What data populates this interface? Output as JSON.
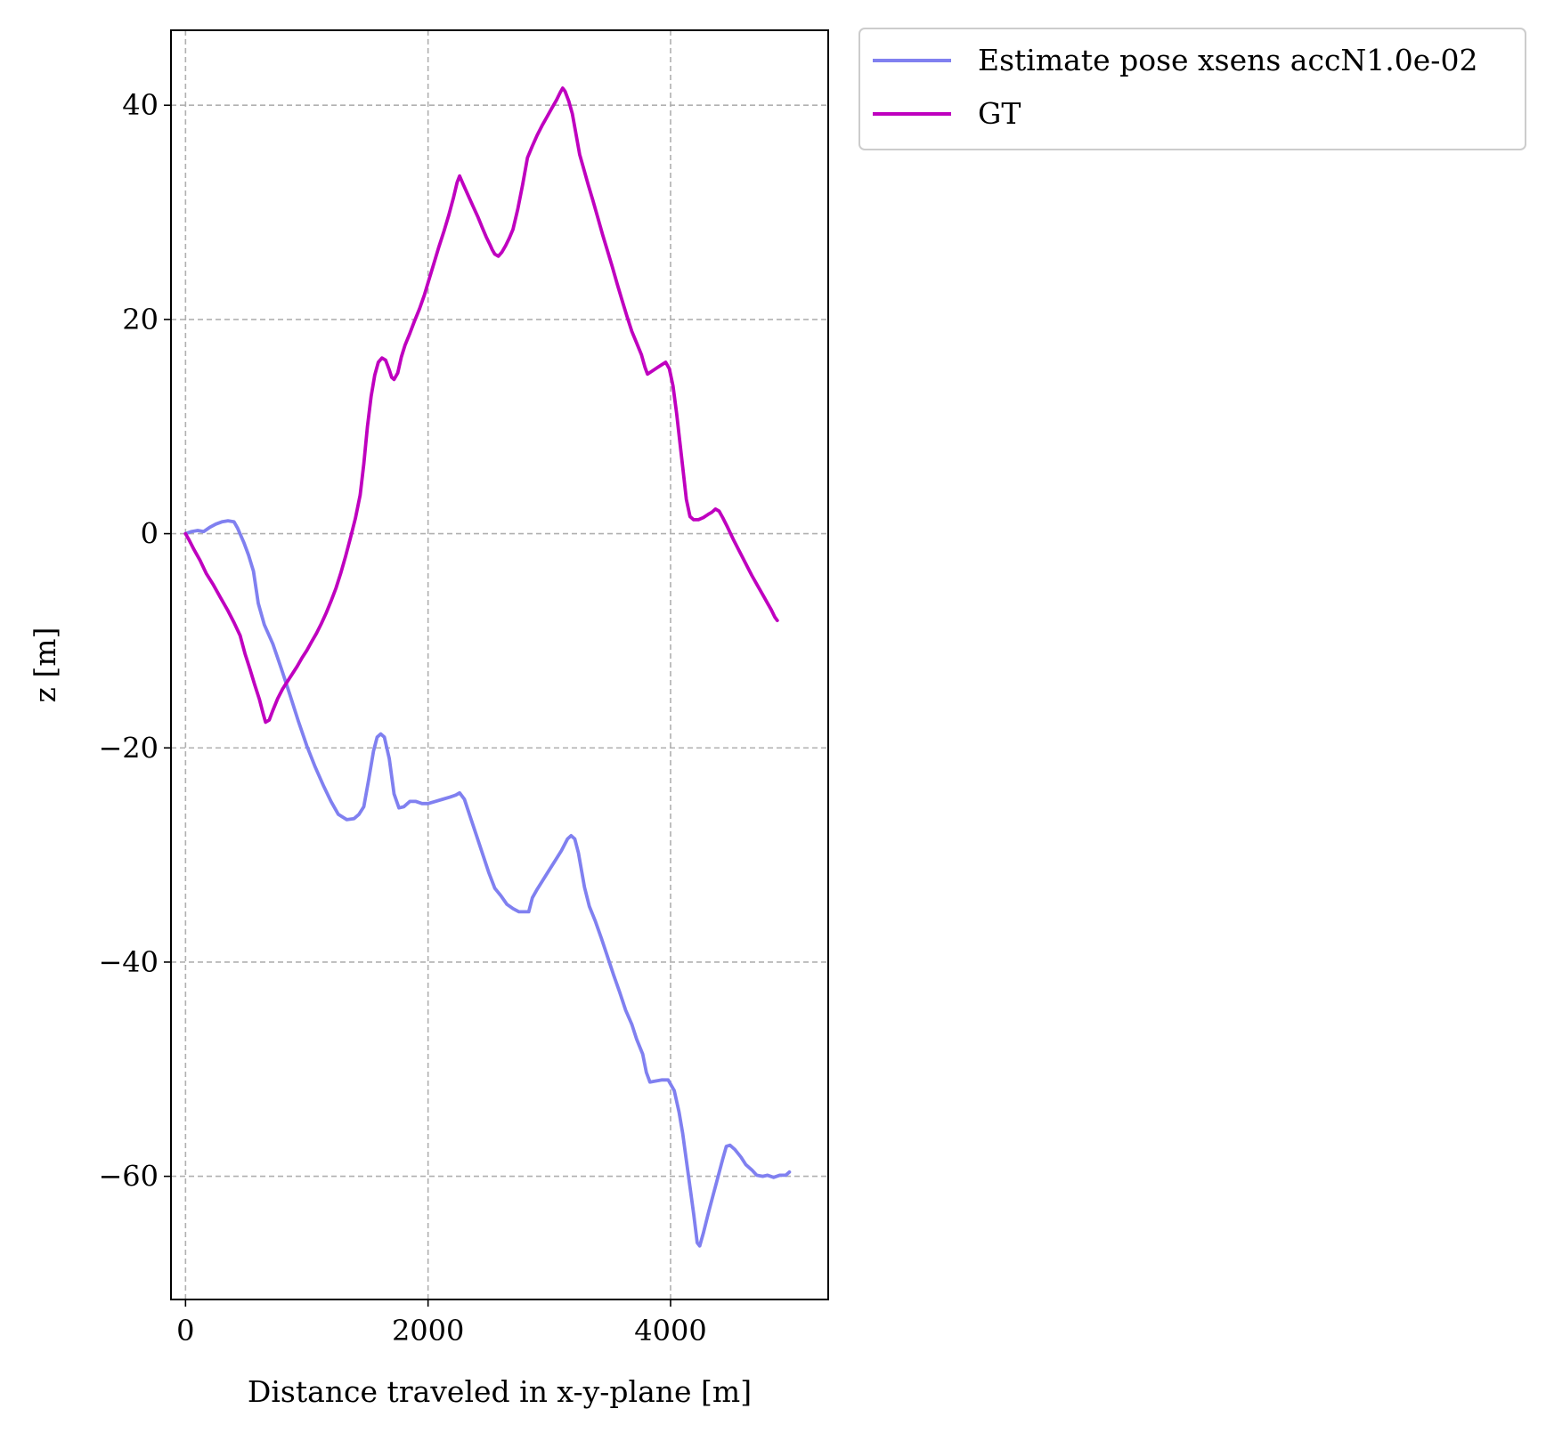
{
  "chart_data": {
    "type": "line",
    "xlabel": "Distance traveled in x-y-plane [m]",
    "ylabel": "z [m]",
    "xlim": [
      -120,
      5300
    ],
    "ylim": [
      -71.5,
      47
    ],
    "x_ticks": [
      0,
      2000,
      4000
    ],
    "x_tick_labels": [
      "0",
      "2000",
      "4000"
    ],
    "y_ticks": [
      40,
      20,
      0,
      -20,
      -40,
      -60
    ],
    "y_tick_labels": [
      "40",
      "20",
      "0",
      "−20",
      "−40",
      "−60"
    ],
    "grid": true,
    "legend_position": "outside-upper-right",
    "series": [
      {
        "name": "Estimate pose xsens accN1.0e-02",
        "color": "#8080f0",
        "points": [
          [
            0,
            0
          ],
          [
            50,
            0.2
          ],
          [
            100,
            0.3
          ],
          [
            150,
            0.2
          ],
          [
            200,
            0.6
          ],
          [
            250,
            0.9
          ],
          [
            300,
            1.1
          ],
          [
            350,
            1.2
          ],
          [
            400,
            1.1
          ],
          [
            430,
            0.5
          ],
          [
            480,
            -0.8
          ],
          [
            520,
            -2.0
          ],
          [
            560,
            -3.5
          ],
          [
            600,
            -6.5
          ],
          [
            650,
            -8.5
          ],
          [
            720,
            -10.3
          ],
          [
            790,
            -12.6
          ],
          [
            860,
            -15.0
          ],
          [
            930,
            -17.5
          ],
          [
            1000,
            -19.8
          ],
          [
            1070,
            -21.8
          ],
          [
            1140,
            -23.6
          ],
          [
            1200,
            -25.0
          ],
          [
            1260,
            -26.2
          ],
          [
            1330,
            -26.7
          ],
          [
            1390,
            -26.6
          ],
          [
            1430,
            -26.2
          ],
          [
            1470,
            -25.5
          ],
          [
            1510,
            -23.0
          ],
          [
            1550,
            -20.3
          ],
          [
            1580,
            -19.0
          ],
          [
            1610,
            -18.7
          ],
          [
            1640,
            -19.0
          ],
          [
            1680,
            -21.0
          ],
          [
            1720,
            -24.3
          ],
          [
            1760,
            -25.6
          ],
          [
            1800,
            -25.5
          ],
          [
            1850,
            -25.0
          ],
          [
            1900,
            -25.0
          ],
          [
            1950,
            -25.2
          ],
          [
            2000,
            -25.2
          ],
          [
            2060,
            -25.0
          ],
          [
            2120,
            -24.8
          ],
          [
            2180,
            -24.6
          ],
          [
            2230,
            -24.4
          ],
          [
            2260,
            -24.2
          ],
          [
            2300,
            -24.8
          ],
          [
            2350,
            -26.5
          ],
          [
            2400,
            -28.2
          ],
          [
            2450,
            -29.9
          ],
          [
            2500,
            -31.6
          ],
          [
            2550,
            -33.1
          ],
          [
            2600,
            -33.8
          ],
          [
            2650,
            -34.6
          ],
          [
            2700,
            -35.0
          ],
          [
            2750,
            -35.3
          ],
          [
            2800,
            -35.3
          ],
          [
            2830,
            -35.3
          ],
          [
            2860,
            -34.0
          ],
          [
            2900,
            -33.2
          ],
          [
            2950,
            -32.3
          ],
          [
            3000,
            -31.4
          ],
          [
            3050,
            -30.5
          ],
          [
            3100,
            -29.6
          ],
          [
            3150,
            -28.5
          ],
          [
            3180,
            -28.2
          ],
          [
            3210,
            -28.5
          ],
          [
            3240,
            -29.8
          ],
          [
            3290,
            -33.0
          ],
          [
            3330,
            -34.8
          ],
          [
            3380,
            -36.2
          ],
          [
            3430,
            -37.8
          ],
          [
            3480,
            -39.5
          ],
          [
            3530,
            -41.2
          ],
          [
            3580,
            -42.8
          ],
          [
            3630,
            -44.5
          ],
          [
            3680,
            -45.8
          ],
          [
            3720,
            -47.2
          ],
          [
            3770,
            -48.6
          ],
          [
            3800,
            -50.3
          ],
          [
            3830,
            -51.2
          ],
          [
            3880,
            -51.1
          ],
          [
            3930,
            -51.0
          ],
          [
            3980,
            -51.0
          ],
          [
            4030,
            -52.0
          ],
          [
            4070,
            -54.0
          ],
          [
            4100,
            -56.0
          ],
          [
            4130,
            -58.5
          ],
          [
            4160,
            -61.0
          ],
          [
            4190,
            -63.5
          ],
          [
            4220,
            -66.2
          ],
          [
            4240,
            -66.5
          ],
          [
            4270,
            -65.3
          ],
          [
            4310,
            -63.5
          ],
          [
            4350,
            -61.8
          ],
          [
            4390,
            -60.1
          ],
          [
            4430,
            -58.4
          ],
          [
            4460,
            -57.2
          ],
          [
            4490,
            -57.1
          ],
          [
            4530,
            -57.5
          ],
          [
            4580,
            -58.2
          ],
          [
            4620,
            -58.9
          ],
          [
            4670,
            -59.4
          ],
          [
            4710,
            -59.9
          ],
          [
            4760,
            -60.0
          ],
          [
            4800,
            -59.9
          ],
          [
            4850,
            -60.1
          ],
          [
            4900,
            -59.9
          ],
          [
            4950,
            -59.9
          ],
          [
            4980,
            -59.6
          ]
        ]
      },
      {
        "name": "GT",
        "color": "#bf00bf",
        "points": [
          [
            0,
            0
          ],
          [
            30,
            -0.6
          ],
          [
            70,
            -1.5
          ],
          [
            120,
            -2.5
          ],
          [
            170,
            -3.7
          ],
          [
            230,
            -4.8
          ],
          [
            290,
            -6.0
          ],
          [
            350,
            -7.2
          ],
          [
            400,
            -8.3
          ],
          [
            450,
            -9.5
          ],
          [
            490,
            -11.2
          ],
          [
            530,
            -12.6
          ],
          [
            570,
            -14.1
          ],
          [
            610,
            -15.5
          ],
          [
            640,
            -16.8
          ],
          [
            660,
            -17.6
          ],
          [
            690,
            -17.4
          ],
          [
            720,
            -16.5
          ],
          [
            760,
            -15.4
          ],
          [
            800,
            -14.5
          ],
          [
            840,
            -13.8
          ],
          [
            880,
            -13.1
          ],
          [
            920,
            -12.4
          ],
          [
            960,
            -11.6
          ],
          [
            1000,
            -10.9
          ],
          [
            1040,
            -10.1
          ],
          [
            1080,
            -9.3
          ],
          [
            1120,
            -8.4
          ],
          [
            1160,
            -7.4
          ],
          [
            1200,
            -6.3
          ],
          [
            1240,
            -5.1
          ],
          [
            1280,
            -3.7
          ],
          [
            1320,
            -2.1
          ],
          [
            1360,
            -0.4
          ],
          [
            1400,
            1.4
          ],
          [
            1440,
            3.6
          ],
          [
            1470,
            6.5
          ],
          [
            1500,
            10.0
          ],
          [
            1530,
            12.8
          ],
          [
            1560,
            14.8
          ],
          [
            1590,
            16.0
          ],
          [
            1620,
            16.4
          ],
          [
            1650,
            16.2
          ],
          [
            1680,
            15.3
          ],
          [
            1700,
            14.6
          ],
          [
            1720,
            14.4
          ],
          [
            1750,
            15.0
          ],
          [
            1780,
            16.5
          ],
          [
            1810,
            17.6
          ],
          [
            1850,
            18.7
          ],
          [
            1890,
            19.9
          ],
          [
            1930,
            21.0
          ],
          [
            1970,
            22.3
          ],
          [
            2010,
            23.8
          ],
          [
            2050,
            25.3
          ],
          [
            2090,
            26.8
          ],
          [
            2130,
            28.2
          ],
          [
            2170,
            29.7
          ],
          [
            2210,
            31.4
          ],
          [
            2240,
            32.8
          ],
          [
            2260,
            33.4
          ],
          [
            2290,
            32.6
          ],
          [
            2330,
            31.6
          ],
          [
            2370,
            30.6
          ],
          [
            2410,
            29.6
          ],
          [
            2450,
            28.5
          ],
          [
            2480,
            27.7
          ],
          [
            2510,
            27.0
          ],
          [
            2530,
            26.5
          ],
          [
            2550,
            26.1
          ],
          [
            2580,
            25.9
          ],
          [
            2610,
            26.3
          ],
          [
            2640,
            26.9
          ],
          [
            2670,
            27.6
          ],
          [
            2700,
            28.4
          ],
          [
            2740,
            30.3
          ],
          [
            2780,
            32.6
          ],
          [
            2820,
            35.1
          ],
          [
            2860,
            36.2
          ],
          [
            2900,
            37.2
          ],
          [
            2940,
            38.1
          ],
          [
            2980,
            38.9
          ],
          [
            3020,
            39.7
          ],
          [
            3060,
            40.5
          ],
          [
            3090,
            41.2
          ],
          [
            3110,
            41.6
          ],
          [
            3130,
            41.3
          ],
          [
            3160,
            40.4
          ],
          [
            3190,
            39.2
          ],
          [
            3220,
            37.3
          ],
          [
            3250,
            35.4
          ],
          [
            3280,
            34.2
          ],
          [
            3320,
            32.6
          ],
          [
            3360,
            31.1
          ],
          [
            3400,
            29.5
          ],
          [
            3440,
            27.9
          ],
          [
            3480,
            26.4
          ],
          [
            3520,
            24.9
          ],
          [
            3560,
            23.3
          ],
          [
            3600,
            21.8
          ],
          [
            3640,
            20.3
          ],
          [
            3680,
            18.9
          ],
          [
            3720,
            17.8
          ],
          [
            3760,
            16.7
          ],
          [
            3790,
            15.5
          ],
          [
            3810,
            14.9
          ],
          [
            3850,
            15.2
          ],
          [
            3890,
            15.5
          ],
          [
            3930,
            15.8
          ],
          [
            3960,
            16.0
          ],
          [
            3990,
            15.4
          ],
          [
            4020,
            13.8
          ],
          [
            4050,
            11.2
          ],
          [
            4080,
            8.2
          ],
          [
            4110,
            5.2
          ],
          [
            4130,
            3.2
          ],
          [
            4160,
            1.6
          ],
          [
            4190,
            1.3
          ],
          [
            4230,
            1.3
          ],
          [
            4270,
            1.5
          ],
          [
            4310,
            1.8
          ],
          [
            4340,
            2.0
          ],
          [
            4370,
            2.3
          ],
          [
            4400,
            2.1
          ],
          [
            4430,
            1.5
          ],
          [
            4470,
            0.6
          ],
          [
            4520,
            -0.6
          ],
          [
            4570,
            -1.7
          ],
          [
            4620,
            -2.8
          ],
          [
            4670,
            -3.9
          ],
          [
            4720,
            -4.9
          ],
          [
            4760,
            -5.7
          ],
          [
            4800,
            -6.5
          ],
          [
            4830,
            -7.1
          ],
          [
            4860,
            -7.8
          ],
          [
            4880,
            -8.1
          ]
        ]
      }
    ]
  }
}
